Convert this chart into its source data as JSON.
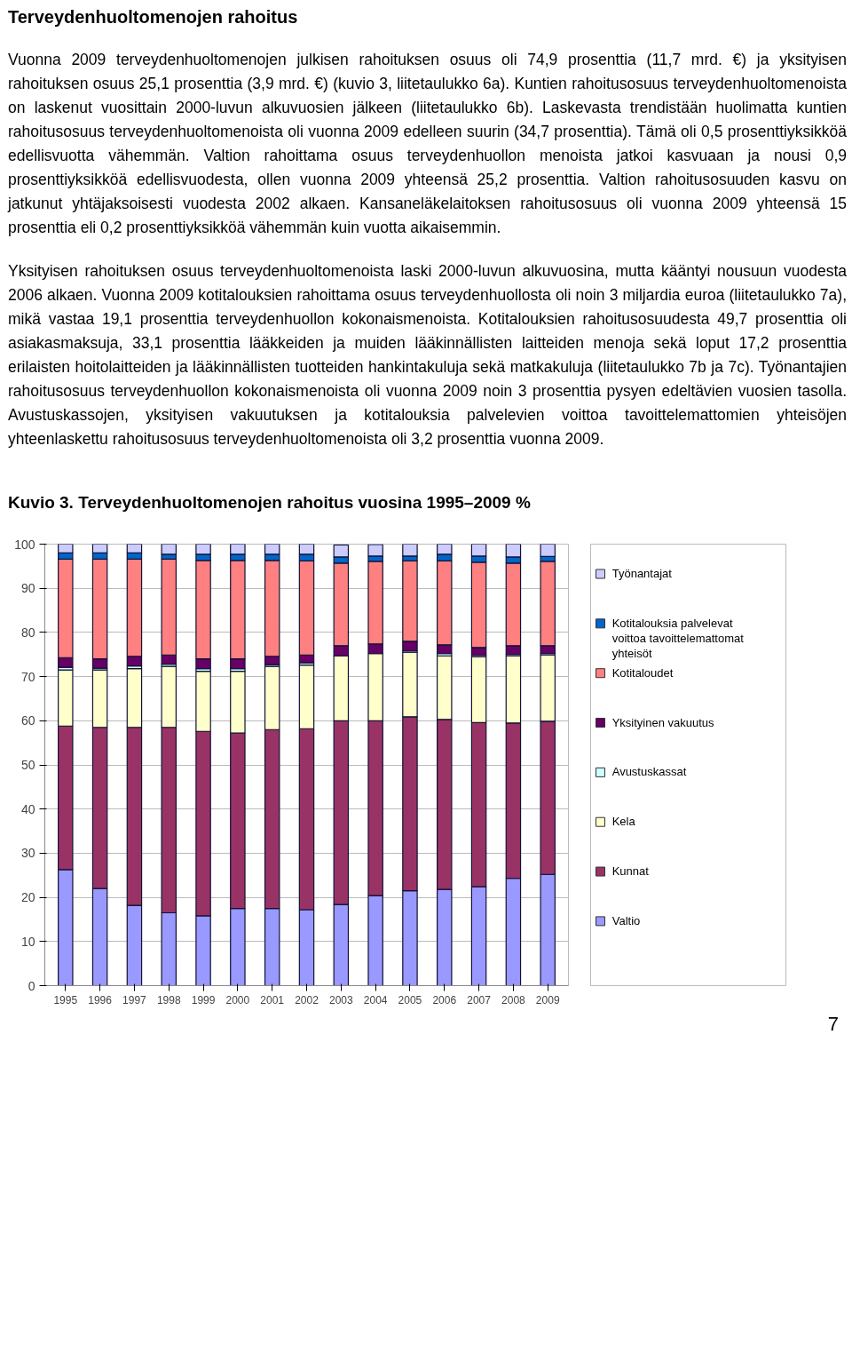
{
  "chart_data": {
    "type": "bar",
    "stacked": true,
    "title": "Kuvio 3. Terveydenhuoltomenojen rahoitus vuosina 1995–2009 %",
    "categories": [
      "1995",
      "1996",
      "1997",
      "1998",
      "1999",
      "2000",
      "2001",
      "2002",
      "2003",
      "2004",
      "2005",
      "2006",
      "2007",
      "2008",
      "2009"
    ],
    "series": [
      {
        "name": "Valtio",
        "color": "#9999ff",
        "values": [
          26.3,
          22.0,
          18.2,
          16.5,
          15.8,
          17.5,
          17.5,
          17.2,
          18.4,
          20.4,
          21.5,
          21.8,
          22.4,
          24.3,
          25.2
        ]
      },
      {
        "name": "Kunnat",
        "color": "#993366",
        "values": [
          32.5,
          36.5,
          40.3,
          42.0,
          41.8,
          39.7,
          40.5,
          41.0,
          41.6,
          39.6,
          39.4,
          38.5,
          37.2,
          35.2,
          34.7
        ]
      },
      {
        "name": "Kela",
        "color": "#ffffcc",
        "values": [
          12.7,
          13.0,
          13.3,
          13.8,
          13.6,
          14.0,
          14.3,
          14.4,
          14.7,
          15.2,
          14.6,
          14.4,
          14.9,
          15.2,
          15.0
        ]
      },
      {
        "name": "Avustuskassat",
        "color": "#ccffff",
        "values": [
          0.6,
          0.4,
          0.6,
          0.5,
          0.6,
          0.6,
          0.4,
          0.5,
          null,
          null,
          0.3,
          0.5,
          0.3,
          0.3,
          0.3
        ]
      },
      {
        "name": "Yksityinen vakuutus",
        "color": "#660066",
        "values": [
          2.2,
          2.1,
          2.2,
          2.1,
          2.2,
          2.2,
          1.9,
          1.8,
          2.3,
          2.2,
          2.2,
          2.0,
          1.8,
          2.0,
          1.8
        ]
      },
      {
        "name": "Kotitaloudet",
        "color": "#ff8080",
        "values": [
          22.3,
          22.6,
          22.0,
          21.7,
          22.3,
          22.3,
          21.7,
          21.3,
          18.7,
          18.7,
          18.2,
          19.0,
          19.3,
          18.7,
          19.1
        ]
      },
      {
        "name": "Kotitalouksia palvelevat voittoa tavoittelemattomat yhteisöt",
        "color": "#0066cc",
        "values": [
          1.4,
          1.4,
          1.4,
          1.1,
          1.4,
          1.4,
          1.4,
          1.5,
          1.4,
          1.2,
          1.1,
          1.5,
          1.4,
          1.4,
          1.1
        ]
      },
      {
        "name": "Työnantajat",
        "color": "#ccccff",
        "values": [
          2.0,
          2.0,
          2.0,
          2.3,
          2.3,
          2.3,
          2.3,
          2.3,
          2.7,
          2.6,
          2.7,
          2.3,
          2.7,
          2.9,
          2.8
        ]
      }
    ],
    "ylim": [
      0,
      100
    ],
    "yticks": [
      0,
      10,
      20,
      30,
      40,
      50,
      60,
      70,
      80,
      90,
      100
    ],
    "grid": "y",
    "legend": "right",
    "annotations": [
      "Terveydenhuoltomenojen rahoitus",
      "Vuonna 2009 terveydenhuoltomenojen julkisen rahoituksen osuus oli 74,9 prosenttia (11,7 mrd. €) ja yksityisen rahoituksen osuus 25,1 prosenttia (3,9 mrd. €) (kuvio 3, liitetaulukko 6a). Kuntien rahoitusosuus terveydenhuoltomenoista on laskenut vuosittain 2000-luvun alkuvuosien jälkeen (liitetaulukko 6b). Laskevasta trendistään huolimatta kuntien rahoitusosuus terveydenhuoltomenoista oli vuonna 2009 edelleen suurin (34,7 prosenttia). Tämä oli 0,5 prosenttiyksikköä edellisvuotta vähemmän. Valtion rahoittama osuus terveydenhuollon menoista jatkoi kasvuaan ja nousi 0,9 prosenttiyksikköä edellisvuodesta, ollen vuonna 2009 yhteensä 25,2 prosenttia. Valtion rahoitusosuuden kasvu on jatkunut yhtäjaksoisesti vuodesta 2002 alkaen. Kansaneläkelaitoksen rahoitusosuus oli vuonna 2009 yhteensä 15 prosenttia eli 0,2 prosenttiyksikköä vähemmän kuin vuotta aikaisemmin.",
      "Yksityisen rahoituksen osuus terveydenhuoltomenoista laski 2000-luvun alkuvuosina, mutta kääntyi nousuun vuodesta 2006 alkaen. Vuonna 2009 kotitalouksien rahoittama osuus terveydenhuollosta oli noin 3 miljardia euroa (liitetaulukko 7a), mikä vastaa 19,1 prosenttia terveydenhuollon kokonaismenoista. Kotitalouksien rahoitusosuudesta 49,7 prosenttia oli asiakasmaksuja, 33,1 prosenttia lääkkeiden ja muiden lääkinnällisten laitteiden menoja sekä loput 17,2 prosenttia erilaisten hoitolaitteiden ja lääkinnällisten tuotteiden hankintakuluja sekä matkakuluja (liitetaulukko 7b ja 7c). Työnantajien rahoitusosuus terveydenhuollon kokonaismenoista oli vuonna 2009 noin 3 prosenttia pysyen edeltävien vuosien tasolla. Avustuskassojen, yksityisen vakuutuksen ja kotitalouksia palvelevien voittoa tavoittelemattomien yhteisöjen yhteenlaskettu rahoitusosuus terveydenhuoltomenoista oli 3,2 prosenttia vuonna 2009.",
      "7"
    ]
  }
}
